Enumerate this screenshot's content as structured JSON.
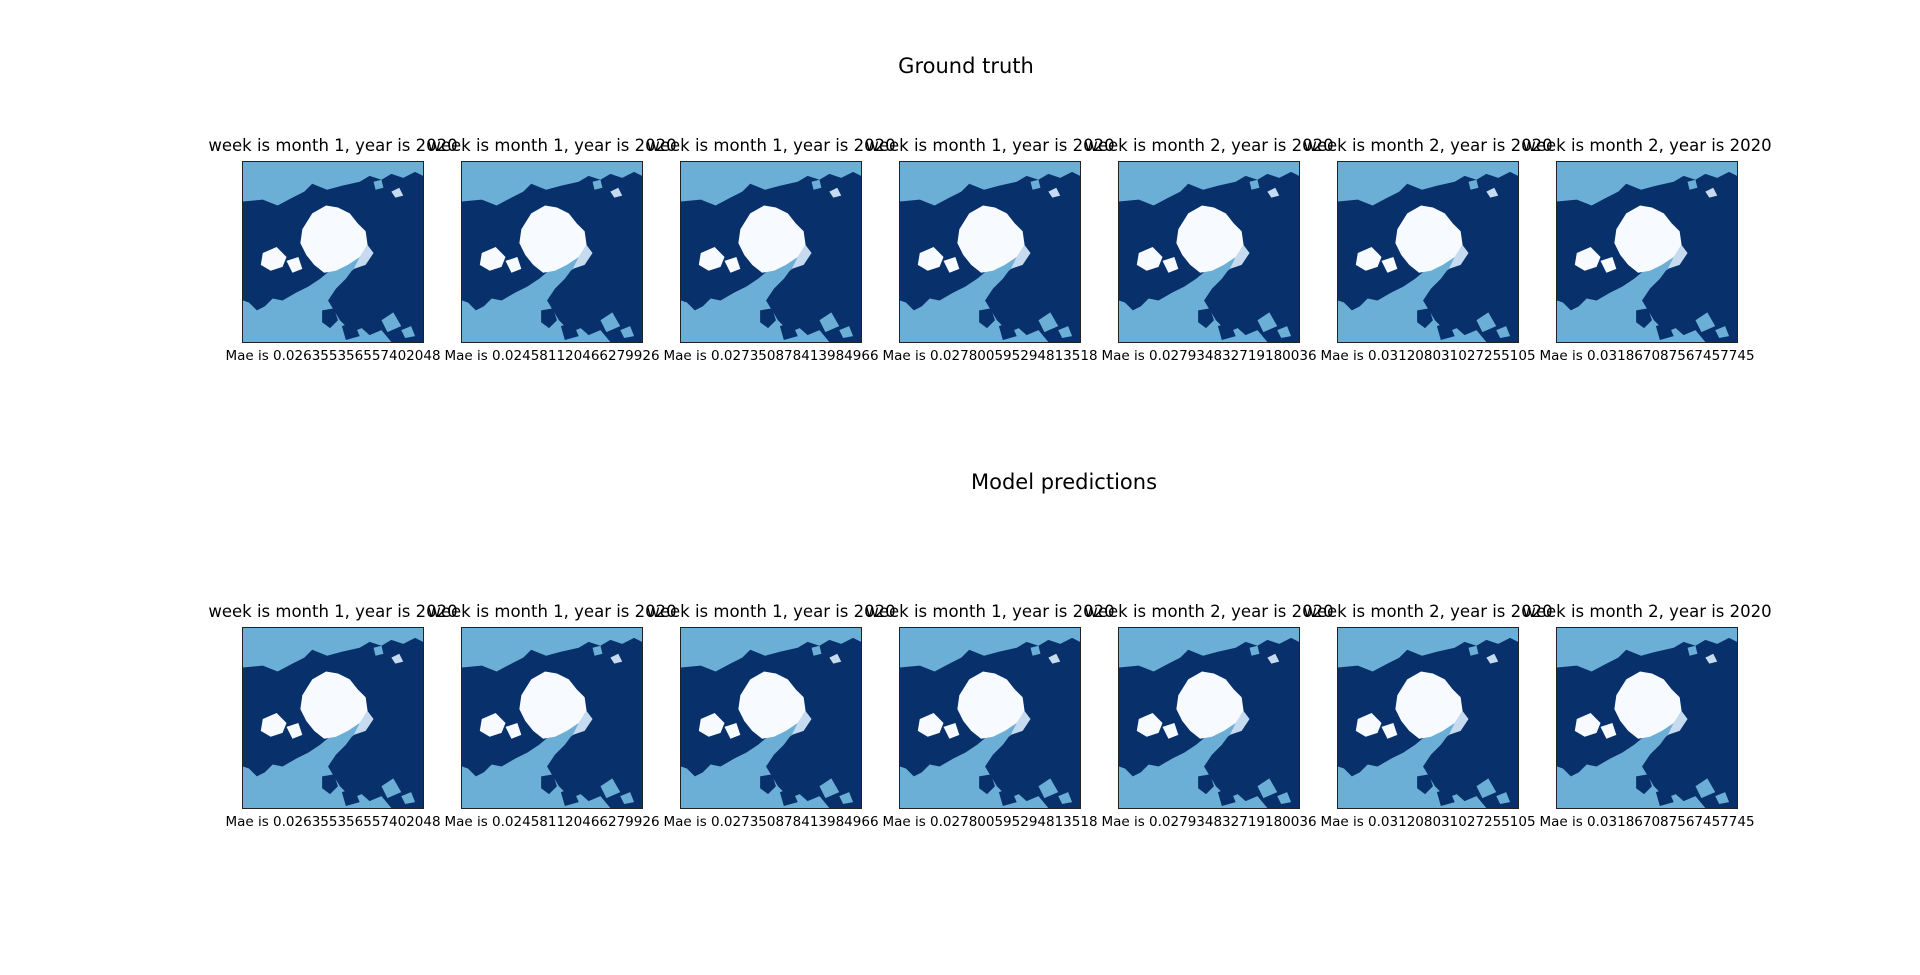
{
  "figure": {
    "rows": [
      {
        "title": "Ground truth",
        "panels": [
          {
            "title": "week is month 1, year is 2020",
            "mae_label": "Mae is 0.026355356557402048"
          },
          {
            "title": "week is month 1, year is 2020",
            "mae_label": "Mae is 0.024581120466279926"
          },
          {
            "title": "week is month 1, year is 2020",
            "mae_label": "Mae is 0.027350878413984966"
          },
          {
            "title": "week is month 1, year is 2020",
            "mae_label": "Mae is 0.027800595294813518"
          },
          {
            "title": "week is month 2, year is 2020",
            "mae_label": "Mae is 0.027934832719180036"
          },
          {
            "title": "week is month 2, year is 2020",
            "mae_label": "Mae is 0.031208031027255105"
          },
          {
            "title": "week is month 2, year is 2020",
            "mae_label": "Mae is 0.031867087567457745"
          }
        ]
      },
      {
        "title": "Model predictions",
        "panels": [
          {
            "title": "week is month 1, year is 2020",
            "mae_label": "Mae is 0.026355356557402048"
          },
          {
            "title": "week is month 1, year is 2020",
            "mae_label": "Mae is 0.024581120466279926"
          },
          {
            "title": "week is month 1, year is 2020",
            "mae_label": "Mae is 0.027350878413984966"
          },
          {
            "title": "week is month 1, year is 2020",
            "mae_label": "Mae is 0.027800595294813518"
          },
          {
            "title": "week is month 2, year is 2020",
            "mae_label": "Mae is 0.027934832719180036"
          },
          {
            "title": "week is month 2, year is 2020",
            "mae_label": "Mae is 0.031208031027255105"
          },
          {
            "title": "week is month 2, year is 2020",
            "mae_label": "Mae is 0.031867087567457745"
          }
        ]
      }
    ]
  },
  "chart_data": {
    "type": "heatmap",
    "colormap": "Blues",
    "colors": {
      "ocean": "#6baed6",
      "land": "#08306b",
      "ice": "#f7fbff"
    },
    "grid": false,
    "axes_ticks": false
  }
}
